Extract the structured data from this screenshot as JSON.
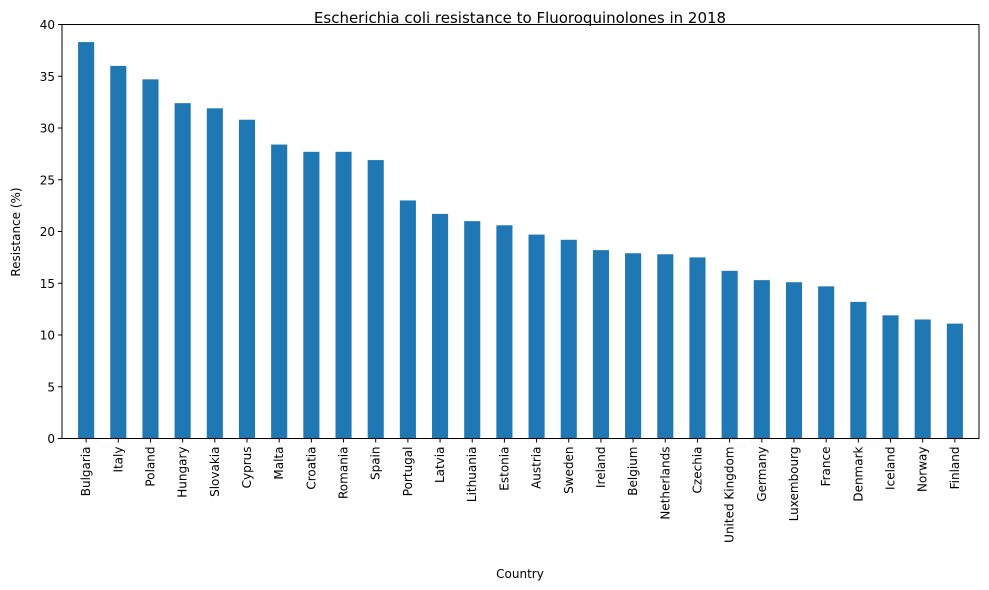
{
  "chart_data": {
    "type": "bar",
    "title": "Escherichia coli resistance to Fluoroquinolones in 2018",
    "xlabel": "Country",
    "ylabel": "Resistance (%)",
    "ylim": [
      0,
      40
    ],
    "yticks": [
      0,
      5,
      10,
      15,
      20,
      25,
      30,
      35,
      40
    ],
    "grid": false,
    "bar_color": "#1f77b4",
    "categories": [
      "Bulgaria",
      "Italy",
      "Poland",
      "Hungary",
      "Slovakia",
      "Cyprus",
      "Malta",
      "Croatia",
      "Romania",
      "Spain",
      "Portugal",
      "Latvia",
      "Lithuania",
      "Estonia",
      "Austria",
      "Sweden",
      "Ireland",
      "Belgium",
      "Netherlands",
      "Czechia",
      "United Kingdom",
      "Germany",
      "Luxembourg",
      "France",
      "Denmark",
      "Iceland",
      "Norway",
      "Finland"
    ],
    "values": [
      38.3,
      36.0,
      34.7,
      32.4,
      31.9,
      30.8,
      28.4,
      27.7,
      27.7,
      26.9,
      23.0,
      21.7,
      21.0,
      20.6,
      19.7,
      19.2,
      18.2,
      17.9,
      17.8,
      17.5,
      16.2,
      15.3,
      15.1,
      14.7,
      13.2,
      11.9,
      11.5,
      11.1
    ]
  }
}
